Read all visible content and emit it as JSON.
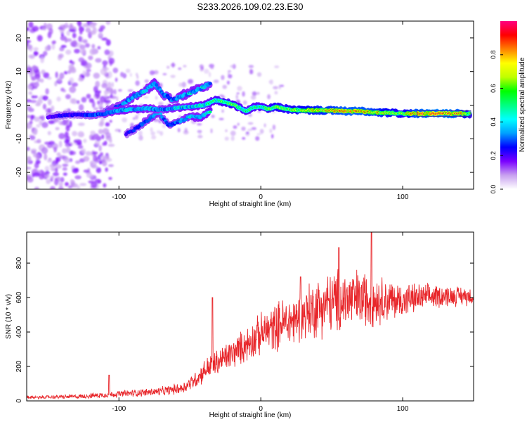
{
  "title": "S233.2026.109.02.23.E30",
  "colors": {
    "axis": "#000000",
    "snr_line": "#e8262a",
    "trace_outline": "#3a2aa0",
    "background": "#ffffff"
  },
  "chart_data": [
    {
      "type": "heatmap",
      "name": "spectrogram",
      "xlabel": "Height of straight line (km)",
      "ylabel": "Frequency (Hz)",
      "xlim": [
        -165,
        150
      ],
      "ylim": [
        -25,
        25
      ],
      "xticks": [
        -100,
        0,
        100
      ],
      "yticks": [
        -20,
        -10,
        0,
        10,
        20
      ],
      "xtick_labels": [
        "-100",
        "0",
        "100"
      ],
      "ytick_labels": [
        "-20",
        "-10",
        "0",
        "10",
        "20"
      ],
      "colorbar": {
        "label": "Normalized spectral amplitude",
        "range": [
          0,
          1
        ],
        "ticks": [
          0.0,
          0.2,
          0.4,
          0.6,
          0.8
        ],
        "tick_labels": [
          "0.0",
          "0.2",
          "0.4",
          "0.6",
          "0.8"
        ],
        "colormap": [
          "#ffffff",
          "#c8a0f0",
          "#7a00ff",
          "#0000ff",
          "#00a0ff",
          "#00ffff",
          "#00ff80",
          "#00ff00",
          "#c0ff00",
          "#ffff00",
          "#ff8000",
          "#ff0000",
          "#ff0080"
        ]
      },
      "main_trace": [
        {
          "x": -150,
          "y": -3.5,
          "a": 0.25
        },
        {
          "x": -140,
          "y": -3.0,
          "a": 0.3
        },
        {
          "x": -130,
          "y": -2.8,
          "a": 0.3
        },
        {
          "x": -120,
          "y": -3.0,
          "a": 0.35
        },
        {
          "x": -110,
          "y": -2.5,
          "a": 0.4
        },
        {
          "x": -100,
          "y": -1.5,
          "a": 0.45
        },
        {
          "x": -90,
          "y": -1.2,
          "a": 0.45
        },
        {
          "x": -80,
          "y": -1.0,
          "a": 0.45
        },
        {
          "x": -70,
          "y": -1.3,
          "a": 0.4
        },
        {
          "x": -60,
          "y": -0.8,
          "a": 0.45
        },
        {
          "x": -50,
          "y": -0.5,
          "a": 0.45
        },
        {
          "x": -40,
          "y": 0.0,
          "a": 0.5
        },
        {
          "x": -32,
          "y": 1.5,
          "a": 0.55
        },
        {
          "x": -25,
          "y": 0.8,
          "a": 0.6
        },
        {
          "x": -20,
          "y": 0.3,
          "a": 0.6
        },
        {
          "x": -15,
          "y": -0.8,
          "a": 0.55
        },
        {
          "x": -10,
          "y": -1.8,
          "a": 0.55
        },
        {
          "x": -5,
          "y": -0.5,
          "a": 0.55
        },
        {
          "x": 0,
          "y": -0.5,
          "a": 0.55
        },
        {
          "x": 5,
          "y": -1.2,
          "a": 0.6
        },
        {
          "x": 10,
          "y": -0.5,
          "a": 0.65
        },
        {
          "x": 15,
          "y": -0.8,
          "a": 0.65
        },
        {
          "x": 20,
          "y": -1.3,
          "a": 0.65
        },
        {
          "x": 30,
          "y": -1.5,
          "a": 0.7
        },
        {
          "x": 40,
          "y": -1.5,
          "a": 0.75
        },
        {
          "x": 50,
          "y": -1.6,
          "a": 0.8
        },
        {
          "x": 60,
          "y": -1.8,
          "a": 0.85
        },
        {
          "x": 70,
          "y": -1.8,
          "a": 0.85
        },
        {
          "x": 80,
          "y": -2.2,
          "a": 0.8
        },
        {
          "x": 90,
          "y": -2.3,
          "a": 0.7
        },
        {
          "x": 100,
          "y": -2.5,
          "a": 0.65
        },
        {
          "x": 110,
          "y": -2.5,
          "a": 0.85
        },
        {
          "x": 120,
          "y": -2.5,
          "a": 0.9
        },
        {
          "x": 130,
          "y": -2.5,
          "a": 0.9
        },
        {
          "x": 140,
          "y": -2.5,
          "a": 0.85
        },
        {
          "x": 148,
          "y": -2.6,
          "a": 0.6
        }
      ],
      "upper_branch": [
        {
          "x": -110,
          "y": -2.0,
          "a": 0.35
        },
        {
          "x": -100,
          "y": -0.5,
          "a": 0.4
        },
        {
          "x": -90,
          "y": 2.5,
          "a": 0.45
        },
        {
          "x": -82,
          "y": 4.0,
          "a": 0.45
        },
        {
          "x": -75,
          "y": 6.5,
          "a": 0.45
        },
        {
          "x": -68,
          "y": 3.0,
          "a": 0.4
        },
        {
          "x": -62,
          "y": 1.5,
          "a": 0.4
        },
        {
          "x": -55,
          "y": 3.0,
          "a": 0.45
        },
        {
          "x": -48,
          "y": 4.0,
          "a": 0.45
        },
        {
          "x": -40,
          "y": 5.5,
          "a": 0.45
        },
        {
          "x": -35,
          "y": 6.5,
          "a": 0.4
        }
      ],
      "lower_branch": [
        {
          "x": -95,
          "y": -8.5,
          "a": 0.3
        },
        {
          "x": -88,
          "y": -7.0,
          "a": 0.35
        },
        {
          "x": -80,
          "y": -4.5,
          "a": 0.4
        },
        {
          "x": -72,
          "y": -2.0,
          "a": 0.45
        },
        {
          "x": -65,
          "y": -6.0,
          "a": 0.35
        },
        {
          "x": -58,
          "y": -5.0,
          "a": 0.4
        },
        {
          "x": -50,
          "y": -3.5,
          "a": 0.45
        },
        {
          "x": -42,
          "y": -3.5,
          "a": 0.45
        },
        {
          "x": -35,
          "y": -1.5,
          "a": 0.5
        }
      ]
    },
    {
      "type": "line",
      "name": "snr",
      "xlabel": "Height of straight line (km)",
      "ylabel": "SNR (10 * v/v)",
      "xlim": [
        -165,
        150
      ],
      "ylim": [
        0,
        980
      ],
      "xticks": [
        -100,
        0,
        100
      ],
      "yticks": [
        0,
        200,
        400,
        600,
        800
      ],
      "xtick_labels": [
        "-100",
        "0",
        "100"
      ],
      "ytick_labels": [
        "0",
        "200",
        "400",
        "600",
        "800"
      ],
      "series": [
        {
          "name": "SNR",
          "color": "#e8262a",
          "envelope_x": [
            -165,
            -130,
            -110,
            -90,
            -70,
            -55,
            -45,
            -38,
            -33,
            -25,
            -15,
            -5,
            5,
            15,
            25,
            35,
            45,
            55,
            65,
            75,
            85,
            95,
            105,
            115,
            125,
            135,
            150
          ],
          "envelope_mean": [
            20,
            25,
            35,
            45,
            55,
            75,
            130,
            190,
            210,
            250,
            300,
            360,
            410,
            450,
            470,
            530,
            560,
            580,
            590,
            590,
            590,
            580,
            590,
            600,
            610,
            610,
            610
          ],
          "envelope_amp": [
            10,
            15,
            20,
            25,
            30,
            40,
            60,
            80,
            90,
            100,
            110,
            130,
            150,
            170,
            190,
            200,
            210,
            220,
            210,
            190,
            160,
            130,
            110,
            90,
            80,
            70,
            60
          ],
          "peaks": [
            {
              "x": -107,
              "y": 150
            },
            {
              "x": -34,
              "y": 600
            },
            {
              "x": 28,
              "y": 720
            },
            {
              "x": 55,
              "y": 890
            },
            {
              "x": 78,
              "y": 980
            }
          ]
        }
      ]
    }
  ]
}
